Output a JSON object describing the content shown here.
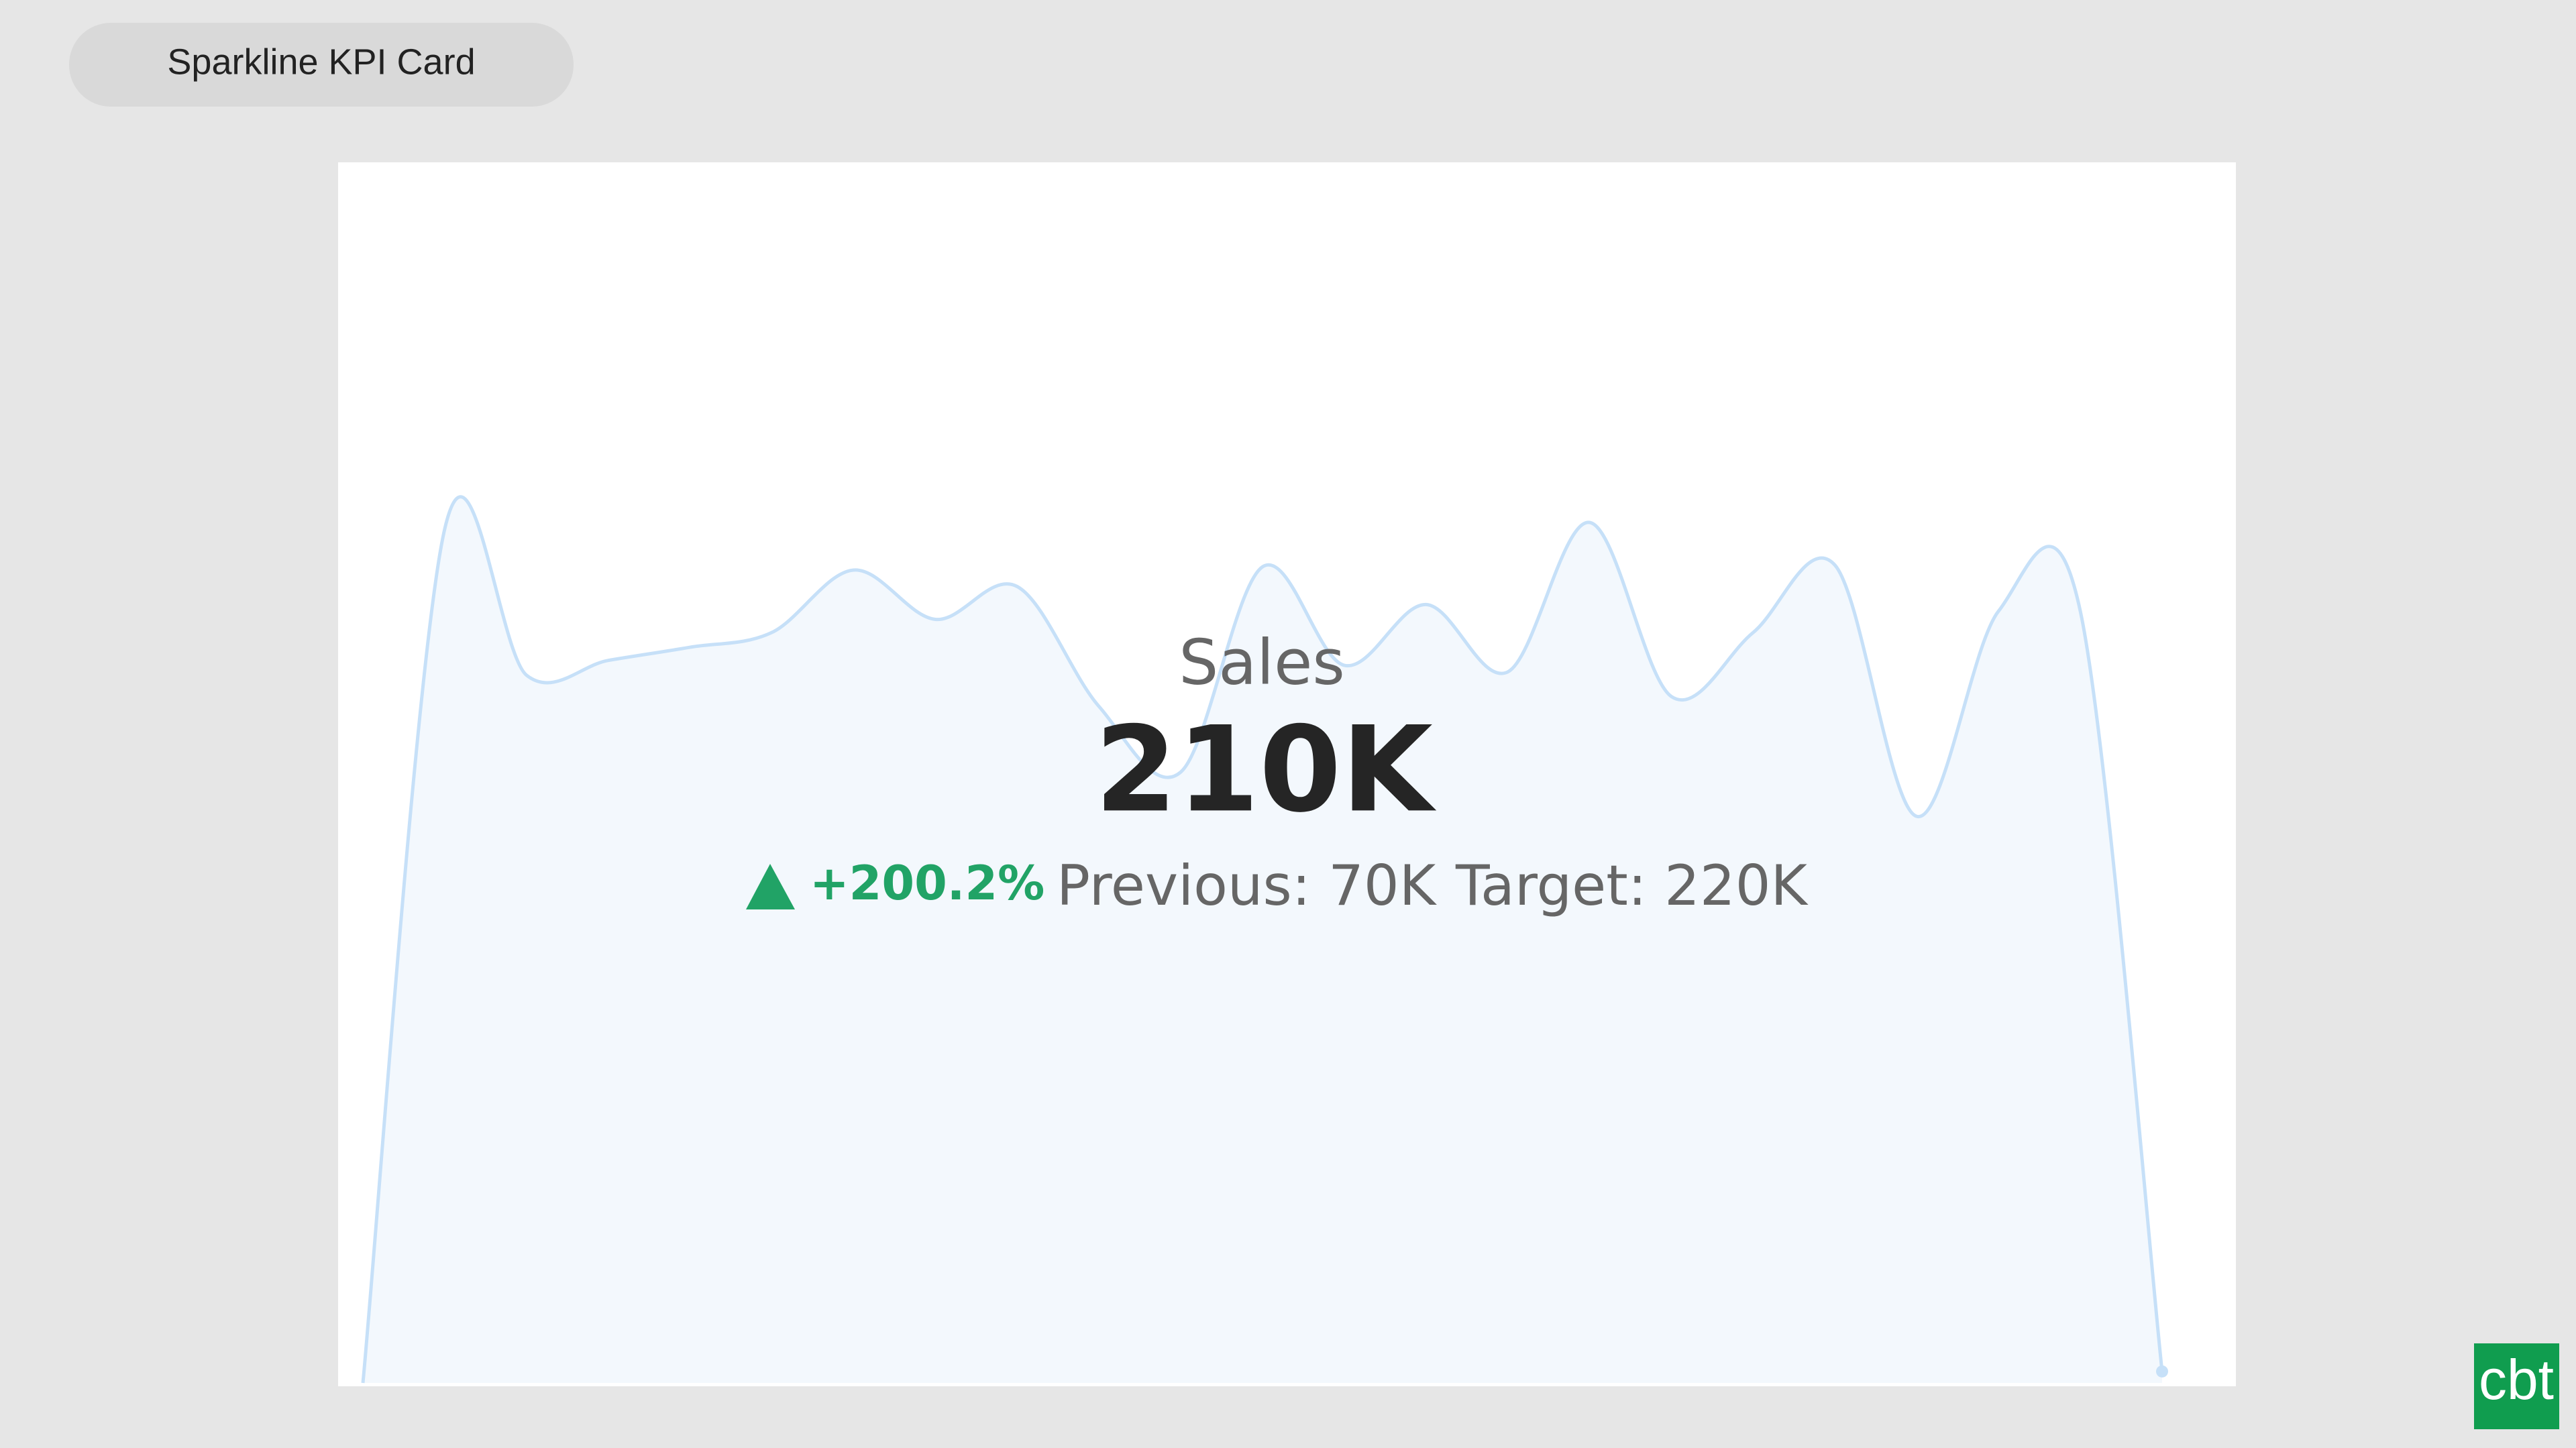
{
  "pill": "Sparkline KPI Card",
  "card": {
    "title": "Sales",
    "value": "210K",
    "change": "+200.2%",
    "previous": "Previous: 70K",
    "target": "Target: 220K",
    "sparkline": {
      "values": [
        0,
        520,
        431,
        440,
        448,
        457,
        495,
        465,
        485,
        412,
        372,
        497,
        437,
        474,
        433,
        524,
        418,
        457,
        498,
        345,
        470,
        470,
        7
      ]
    }
  },
  "logo": "cbt"
}
